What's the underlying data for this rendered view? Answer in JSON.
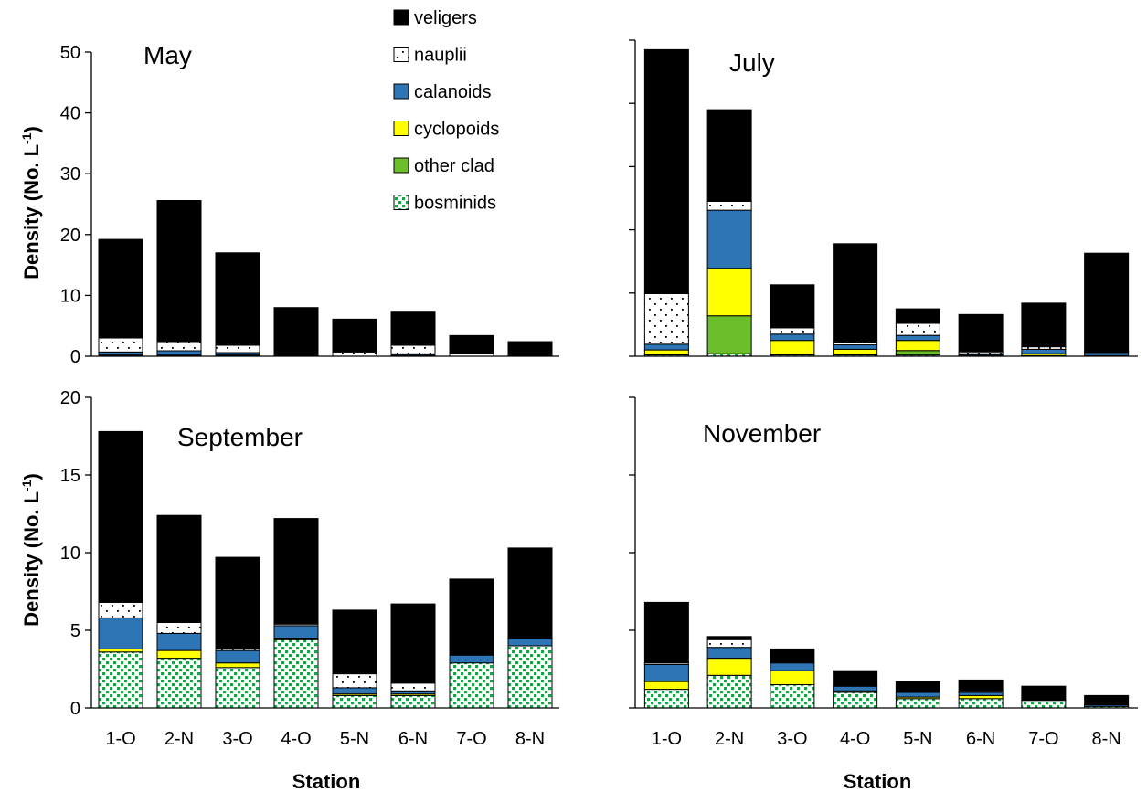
{
  "chart_data": {
    "type": "bar",
    "stacked": true,
    "categories": [
      "1-O",
      "2-N",
      "3-O",
      "4-O",
      "5-N",
      "6-N",
      "7-O",
      "8-N"
    ],
    "ylabel_main": "Density (No. L",
    "ylabel_sup": "-1",
    "ylabel_end": ")",
    "xlabel": "Station",
    "legend_order": [
      "veligers",
      "nauplii",
      "calanoids",
      "cyclopoids",
      "other clad",
      "bosminids"
    ],
    "series_styles": {
      "bosminids": {
        "color": "#1aa14a",
        "pattern": "green-dots"
      },
      "other clad": {
        "color": "#6cbf2a",
        "pattern": "solid"
      },
      "cyclopoids": {
        "color": "#ffff00",
        "pattern": "solid"
      },
      "calanoids": {
        "color": "#2e75b6",
        "pattern": "solid"
      },
      "nauplii": {
        "color": "#ffffff",
        "pattern": "sparse-dots"
      },
      "veligers": {
        "color": "#000000",
        "pattern": "solid"
      }
    },
    "panels": [
      {
        "title": "May",
        "ylim": [
          0,
          50
        ],
        "yticks": [
          0,
          10,
          20,
          30,
          40,
          50
        ],
        "series": [
          {
            "name": "bosminids",
            "values": [
              0.1,
              0.1,
              0.1,
              0,
              0,
              0.1,
              0,
              0
            ]
          },
          {
            "name": "other clad",
            "values": [
              0,
              0,
              0,
              0,
              0,
              0,
              0,
              0
            ]
          },
          {
            "name": "cyclopoids",
            "values": [
              0.1,
              0.1,
              0.1,
              0,
              0,
              0.1,
              0,
              0
            ]
          },
          {
            "name": "calanoids",
            "values": [
              0.5,
              0.7,
              0.4,
              0,
              0,
              0.2,
              0,
              0
            ]
          },
          {
            "name": "nauplii",
            "values": [
              2.3,
              1.5,
              1.2,
              0,
              0.7,
              1.4,
              0.4,
              0
            ]
          },
          {
            "name": "veligers",
            "values": [
              16.2,
              23.2,
              15.2,
              8.0,
              5.4,
              5.6,
              3.0,
              2.4
            ]
          }
        ]
      },
      {
        "title": "July",
        "ylim": [
          0,
          50
        ],
        "yticks": [
          0,
          10,
          20,
          30,
          40,
          50
        ],
        "series": [
          {
            "name": "bosminids",
            "values": [
              0.2,
              0.4,
              0.2,
              0.2,
              0.2,
              0.1,
              0.1,
              0.1
            ]
          },
          {
            "name": "other clad",
            "values": [
              0.1,
              6.0,
              0.1,
              0.1,
              0.7,
              0,
              0,
              0
            ]
          },
          {
            "name": "cyclopoids",
            "values": [
              0.7,
              7.5,
              2.2,
              0.8,
              1.6,
              0.1,
              0.3,
              0
            ]
          },
          {
            "name": "calanoids",
            "values": [
              0.9,
              9.2,
              1.0,
              0.7,
              0.8,
              0.2,
              0.7,
              0.5
            ]
          },
          {
            "name": "nauplii",
            "values": [
              8.0,
              1.4,
              1.0,
              0.4,
              1.9,
              0.3,
              0.4,
              0.1
            ]
          },
          {
            "name": "veligers",
            "values": [
              38.6,
              14.5,
              6.8,
              15.6,
              2.3,
              5.9,
              6.9,
              15.6
            ]
          }
        ]
      },
      {
        "title": "September",
        "ylim": [
          0,
          20
        ],
        "yticks": [
          0,
          5,
          10,
          15,
          20
        ],
        "series": [
          {
            "name": "bosminids",
            "values": [
              3.6,
              3.2,
              2.6,
              4.4,
              0.8,
              0.8,
              2.9,
              4.0
            ]
          },
          {
            "name": "other clad",
            "values": [
              0,
              0,
              0,
              0,
              0,
              0,
              0,
              0
            ]
          },
          {
            "name": "cyclopoids",
            "values": [
              0.2,
              0.5,
              0.3,
              0.1,
              0.1,
              0.1,
              0,
              0
            ]
          },
          {
            "name": "calanoids",
            "values": [
              2.0,
              1.1,
              0.8,
              0.8,
              0.4,
              0.2,
              0.5,
              0.5
            ]
          },
          {
            "name": "nauplii",
            "values": [
              1.0,
              0.7,
              0.1,
              0.1,
              0.9,
              0.5,
              0,
              0
            ]
          },
          {
            "name": "veligers",
            "values": [
              11.0,
              6.9,
              5.9,
              6.8,
              4.1,
              5.1,
              4.9,
              5.8
            ]
          }
        ]
      },
      {
        "title": "November",
        "ylim": [
          0,
          20
        ],
        "yticks": [
          0,
          5,
          10,
          15,
          20
        ],
        "series": [
          {
            "name": "bosminids",
            "values": [
              1.2,
              2.1,
              1.5,
              1.0,
              0.6,
              0.6,
              0.4,
              0.1
            ]
          },
          {
            "name": "other clad",
            "values": [
              0,
              0,
              0,
              0,
              0,
              0,
              0,
              0
            ]
          },
          {
            "name": "cyclopoids",
            "values": [
              0.5,
              1.1,
              0.9,
              0.1,
              0.1,
              0.2,
              0,
              0
            ]
          },
          {
            "name": "calanoids",
            "values": [
              1.1,
              0.7,
              0.5,
              0.3,
              0.3,
              0.2,
              0,
              0.1
            ]
          },
          {
            "name": "nauplii",
            "values": [
              0.1,
              0.5,
              0,
              0,
              0,
              0.1,
              0.1,
              0
            ]
          },
          {
            "name": "veligers",
            "values": [
              3.9,
              0.2,
              0.9,
              1.0,
              0.7,
              0.7,
              0.9,
              0.6
            ]
          }
        ]
      }
    ]
  }
}
